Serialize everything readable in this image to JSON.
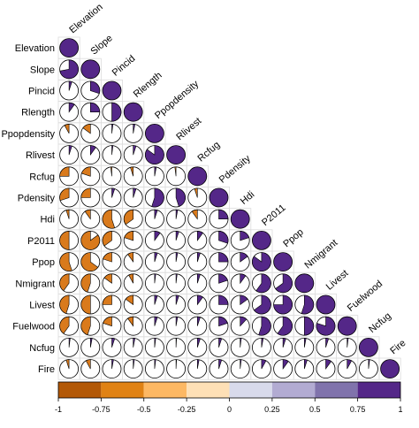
{
  "chart_data": {
    "type": "heatmap",
    "subtype": "correlation-matrix-pie",
    "title": "",
    "variables": [
      "Elevation",
      "Slope",
      "Pincid",
      "Rlength",
      "Ppopdensity",
      "Rlivest",
      "Rcfug",
      "Pdensity",
      "Hdi",
      "P2011",
      "Ppop",
      "Nmigrant",
      "Livest",
      "Fuelwood",
      "Ncfug",
      "Fire"
    ],
    "correlations": [
      [
        1
      ],
      [
        0.72,
        1
      ],
      [
        0.05,
        0.3,
        1
      ],
      [
        0.1,
        0.25,
        0.5,
        1
      ],
      [
        -0.08,
        -0.15,
        0.02,
        0.03,
        1
      ],
      [
        0.05,
        0.1,
        0.02,
        0.05,
        0.85,
        1
      ],
      [
        -0.25,
        -0.2,
        -0.02,
        -0.05,
        0.03,
        -0.02,
        1
      ],
      [
        -0.3,
        -0.25,
        0.05,
        0.05,
        0.55,
        0.45,
        -0.05,
        1
      ],
      [
        -0.05,
        -0.1,
        -0.55,
        -0.35,
        0.05,
        0.03,
        -0.1,
        0.25,
        1
      ],
      [
        -0.5,
        -0.85,
        -0.35,
        -0.2,
        0.1,
        0.05,
        0.1,
        0.3,
        0.2,
        1
      ],
      [
        -0.55,
        -0.65,
        -0.2,
        -0.1,
        0.05,
        0.03,
        0.05,
        0.25,
        0.15,
        0.85,
        1
      ],
      [
        -0.4,
        -0.45,
        -0.15,
        -0.08,
        0.02,
        0.02,
        0.05,
        0.2,
        0.1,
        0.6,
        0.65,
        1
      ],
      [
        -0.45,
        -0.5,
        -0.25,
        -0.15,
        0.05,
        0.05,
        0.1,
        0.25,
        0.15,
        0.65,
        0.75,
        0.55,
        1
      ],
      [
        -0.4,
        -0.45,
        -0.2,
        -0.1,
        0.05,
        0.03,
        0.05,
        0.2,
        0.12,
        0.55,
        0.6,
        0.5,
        0.8,
        1
      ],
      [
        0.02,
        0.03,
        0.05,
        0.03,
        0.02,
        0.01,
        0.05,
        0.05,
        0.02,
        0.03,
        0.05,
        0.03,
        0.05,
        0.02,
        1
      ],
      [
        -0.05,
        -0.08,
        0.03,
        0.02,
        0.02,
        0.01,
        0.03,
        0.05,
        0.02,
        0.08,
        0.1,
        0.05,
        0.1,
        0.08,
        0.02,
        1
      ]
    ],
    "colorbar": {
      "ticks": [
        "-1",
        "-0.75",
        "-0.5",
        "-0.25",
        "0",
        "0.25",
        "0.5",
        "0.75",
        "1"
      ],
      "colors": [
        "#b35806",
        "#e08214",
        "#fdb863",
        "#fee0b6",
        "#d8daeb",
        "#b2abd2",
        "#8073ac",
        "#542788"
      ]
    },
    "positive_fill": "#542788",
    "negative_fill": "#d97a1c"
  }
}
